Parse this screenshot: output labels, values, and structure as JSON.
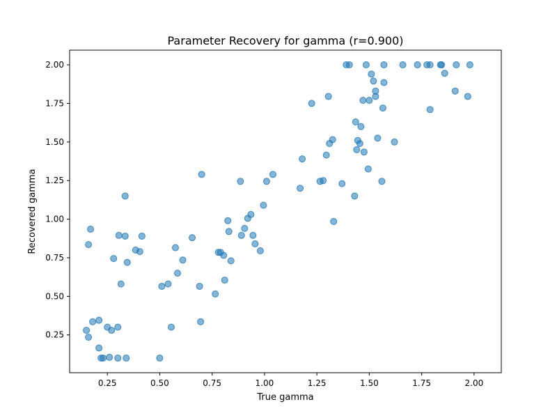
{
  "chart_data": {
    "type": "scatter",
    "title": "Parameter Recovery for gamma (r=0.900)",
    "xlabel": "True gamma",
    "ylabel": "Recovered gamma",
    "xlim": [
      0.07,
      2.13
    ],
    "ylim": [
      0.005,
      2.095
    ],
    "xticks": [
      "0.25",
      "0.50",
      "0.75",
      "1.00",
      "1.25",
      "1.50",
      "1.75",
      "2.00"
    ],
    "yticks": [
      "0.25",
      "0.50",
      "0.75",
      "1.00",
      "1.25",
      "1.50",
      "1.75",
      "2.00"
    ],
    "grid": false,
    "marker_color": "#1f77b4",
    "marker_alpha": 0.55,
    "points": [
      {
        "x": 0.15,
        "y": 0.28
      },
      {
        "x": 0.16,
        "y": 0.235
      },
      {
        "x": 0.16,
        "y": 0.835
      },
      {
        "x": 0.17,
        "y": 0.935
      },
      {
        "x": 0.18,
        "y": 0.335
      },
      {
        "x": 0.21,
        "y": 0.345
      },
      {
        "x": 0.21,
        "y": 0.165
      },
      {
        "x": 0.22,
        "y": 0.1
      },
      {
        "x": 0.23,
        "y": 0.1
      },
      {
        "x": 0.25,
        "y": 0.3
      },
      {
        "x": 0.26,
        "y": 0.105
      },
      {
        "x": 0.27,
        "y": 0.28
      },
      {
        "x": 0.28,
        "y": 0.745
      },
      {
        "x": 0.3,
        "y": 0.1
      },
      {
        "x": 0.3,
        "y": 0.3
      },
      {
        "x": 0.305,
        "y": 0.895
      },
      {
        "x": 0.315,
        "y": 0.58
      },
      {
        "x": 0.335,
        "y": 1.15
      },
      {
        "x": 0.335,
        "y": 0.89
      },
      {
        "x": 0.34,
        "y": 0.1
      },
      {
        "x": 0.345,
        "y": 0.72
      },
      {
        "x": 0.385,
        "y": 0.8
      },
      {
        "x": 0.405,
        "y": 0.79
      },
      {
        "x": 0.415,
        "y": 0.89
      },
      {
        "x": 0.5,
        "y": 0.1
      },
      {
        "x": 0.51,
        "y": 0.565
      },
      {
        "x": 0.54,
        "y": 0.58
      },
      {
        "x": 0.555,
        "y": 0.3
      },
      {
        "x": 0.575,
        "y": 0.815
      },
      {
        "x": 0.585,
        "y": 0.65
      },
      {
        "x": 0.61,
        "y": 0.735
      },
      {
        "x": 0.655,
        "y": 0.88
      },
      {
        "x": 0.69,
        "y": 0.565
      },
      {
        "x": 0.695,
        "y": 0.335
      },
      {
        "x": 0.7,
        "y": 1.29
      },
      {
        "x": 0.765,
        "y": 0.515
      },
      {
        "x": 0.78,
        "y": 0.785
      },
      {
        "x": 0.79,
        "y": 0.785
      },
      {
        "x": 0.805,
        "y": 0.765
      },
      {
        "x": 0.81,
        "y": 0.605
      },
      {
        "x": 0.825,
        "y": 0.99
      },
      {
        "x": 0.83,
        "y": 0.92
      },
      {
        "x": 0.84,
        "y": 0.73
      },
      {
        "x": 0.885,
        "y": 1.245
      },
      {
        "x": 0.89,
        "y": 0.895
      },
      {
        "x": 0.905,
        "y": 0.94
      },
      {
        "x": 0.92,
        "y": 1.005
      },
      {
        "x": 0.935,
        "y": 1.03
      },
      {
        "x": 0.945,
        "y": 0.895
      },
      {
        "x": 0.955,
        "y": 0.84
      },
      {
        "x": 0.98,
        "y": 0.795
      },
      {
        "x": 0.995,
        "y": 1.09
      },
      {
        "x": 1.01,
        "y": 1.245
      },
      {
        "x": 1.04,
        "y": 1.29
      },
      {
        "x": 1.17,
        "y": 1.2
      },
      {
        "x": 1.18,
        "y": 1.39
      },
      {
        "x": 1.225,
        "y": 1.75
      },
      {
        "x": 1.265,
        "y": 1.245
      },
      {
        "x": 1.28,
        "y": 1.25
      },
      {
        "x": 1.295,
        "y": 1.415
      },
      {
        "x": 1.305,
        "y": 1.795
      },
      {
        "x": 1.31,
        "y": 1.49
      },
      {
        "x": 1.325,
        "y": 1.515
      },
      {
        "x": 1.33,
        "y": 0.985
      },
      {
        "x": 1.37,
        "y": 1.23
      },
      {
        "x": 1.39,
        "y": 2.0
      },
      {
        "x": 1.405,
        "y": 2.0
      },
      {
        "x": 1.43,
        "y": 1.15
      },
      {
        "x": 1.435,
        "y": 1.63
      },
      {
        "x": 1.44,
        "y": 1.45
      },
      {
        "x": 1.445,
        "y": 1.51
      },
      {
        "x": 1.455,
        "y": 1.49
      },
      {
        "x": 1.46,
        "y": 1.6
      },
      {
        "x": 1.47,
        "y": 1.77
      },
      {
        "x": 1.475,
        "y": 1.435
      },
      {
        "x": 1.485,
        "y": 2.0
      },
      {
        "x": 1.495,
        "y": 1.325
      },
      {
        "x": 1.5,
        "y": 1.77
      },
      {
        "x": 1.51,
        "y": 1.94
      },
      {
        "x": 1.52,
        "y": 1.895
      },
      {
        "x": 1.53,
        "y": 1.83
      },
      {
        "x": 1.53,
        "y": 1.795
      },
      {
        "x": 1.54,
        "y": 1.525
      },
      {
        "x": 1.56,
        "y": 1.245
      },
      {
        "x": 1.565,
        "y": 1.72
      },
      {
        "x": 1.57,
        "y": 1.885
      },
      {
        "x": 1.57,
        "y": 2.0
      },
      {
        "x": 1.62,
        "y": 1.5
      },
      {
        "x": 1.66,
        "y": 2.0
      },
      {
        "x": 1.73,
        "y": 2.0
      },
      {
        "x": 1.775,
        "y": 2.0
      },
      {
        "x": 1.79,
        "y": 2.0
      },
      {
        "x": 1.79,
        "y": 1.71
      },
      {
        "x": 1.84,
        "y": 2.0
      },
      {
        "x": 1.845,
        "y": 2.0
      },
      {
        "x": 1.86,
        "y": 1.945
      },
      {
        "x": 1.91,
        "y": 1.83
      },
      {
        "x": 1.915,
        "y": 2.0
      },
      {
        "x": 1.97,
        "y": 1.795
      },
      {
        "x": 1.98,
        "y": 2.0
      }
    ]
  }
}
